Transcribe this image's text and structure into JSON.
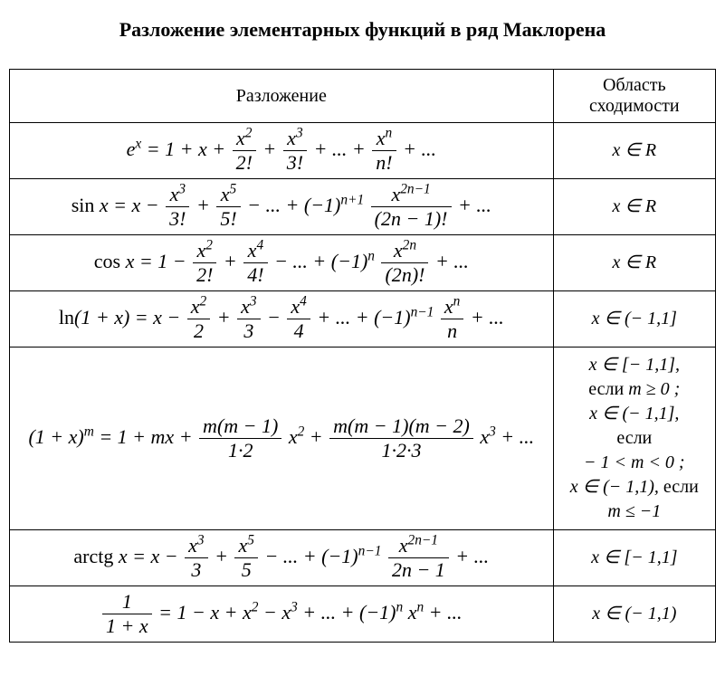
{
  "title": "Разложение элементарных функций в ряд Маклорена",
  "headers": {
    "expansion": "Разложение",
    "convergence": "Область сходимости"
  },
  "rows": [
    {
      "formula_html": "<span class='formula'><i>e</i><sup>x</sup> = 1 + <i>x</i> + <span class='fr'><span class='num'><i>x</i><sup>2</sup></span><span class='den'>2!</span></span> + <span class='fr'><span class='num'><i>x</i><sup>3</sup></span><span class='den'>3!</span></span> + ... + <span class='fr'><span class='num'><i>x</i><sup>n</sup></span><span class='den'><i>n</i>!</span></span> + ...</span>",
      "conv_html": "<i>x</i> ∈ <i>R</i>"
    },
    {
      "formula_html": "<span class='formula'><span class='norm'>sin</span> <i>x</i> = <i>x</i> − <span class='fr'><span class='num'><i>x</i><sup>3</sup></span><span class='den'>3!</span></span> + <span class='fr'><span class='num'><i>x</i><sup>5</sup></span><span class='den'>5!</span></span> − ... + (−1)<sup><i>n</i>+1</sup> <span class='fr'><span class='num'><i>x</i><sup>2<i>n</i>−1</sup></span><span class='den'>(2<i>n</i> − 1)!</span></span> + ...</span>",
      "conv_html": "<i>x</i> ∈ <i>R</i>"
    },
    {
      "formula_html": "<span class='formula'><span class='norm'>cos</span> <i>x</i> = 1 − <span class='fr'><span class='num'><i>x</i><sup>2</sup></span><span class='den'>2!</span></span> + <span class='fr'><span class='num'><i>x</i><sup>4</sup></span><span class='den'>4!</span></span> − ... + (−1)<sup><i>n</i></sup> <span class='fr'><span class='num'><i>x</i><sup>2<i>n</i></sup></span><span class='den'>(2<i>n</i>)!</span></span> + ...</span>",
      "conv_html": "<i>x</i> ∈ <i>R</i>"
    },
    {
      "formula_html": "<span class='formula'><span class='norm'>ln</span>(1 + <i>x</i>) = <i>x</i> − <span class='fr'><span class='num'><i>x</i><sup>2</sup></span><span class='den'>2</span></span> + <span class='fr'><span class='num'><i>x</i><sup>3</sup></span><span class='den'>3</span></span> − <span class='fr'><span class='num'><i>x</i><sup>4</sup></span><span class='den'>4</span></span> + ... + (−1)<sup><i>n</i>−1</sup> <span class='fr'><span class='num'><i>x</i><sup><i>n</i></sup></span><span class='den'><i>n</i></span></span> + ...</span>",
      "conv_html": "<i>x</i> ∈ (− 1,1]"
    },
    {
      "formula_html": "<span class='formula'>(1 + <i>x</i>)<sup><i>m</i></sup> = 1 + <i>mx</i> + <span class='fr'><span class='num'><i>m</i>(<i>m</i> − 1)</span><span class='den'>1·2</span></span> <i>x</i><sup>2</sup> + <span class='fr'><span class='num'><i>m</i>(<i>m</i> − 1)(<i>m</i> − 2)</span><span class='den'>1·2·3</span></span> <i>x</i><sup>3</sup> + ...</span>",
      "conv_html": "<i>x</i> ∈ [− 1,1],<br><span class='norm'>если</span> <i>m</i> ≥ 0 ;<br><i>x</i> ∈ (− 1,1],<br><span class='norm'>если</span><br>− 1 &lt; <i>m</i> &lt; 0 ;<br><i>x</i> ∈ (− 1,1), <span class='norm'>если</span><br><i>m</i> ≤ −1"
    },
    {
      "formula_html": "<span class='formula'><span class='norm'>arctg</span> <i>x</i> = <i>x</i> − <span class='fr'><span class='num'><i>x</i><sup>3</sup></span><span class='den'>3</span></span> + <span class='fr'><span class='num'><i>x</i><sup>5</sup></span><span class='den'>5</span></span> − ... + (−1)<sup><i>n</i>−1</sup> <span class='fr'><span class='num'><i>x</i><sup>2<i>n</i>−1</sup></span><span class='den'>2<i>n</i> − 1</span></span> + ...</span>",
      "conv_html": "<i>x</i> ∈ [− 1,1]"
    },
    {
      "formula_html": "<span class='formula'><span class='fr'><span class='num'>1</span><span class='den'>1 + <i>x</i></span></span> = 1 − <i>x</i> + <i>x</i><sup>2</sup> − <i>x</i><sup>3</sup> + ... + (−1)<sup><i>n</i></sup> <i>x</i><sup><i>n</i></sup> + ...</span>",
      "conv_html": "<i>x</i> ∈ (− 1,1)"
    }
  ]
}
